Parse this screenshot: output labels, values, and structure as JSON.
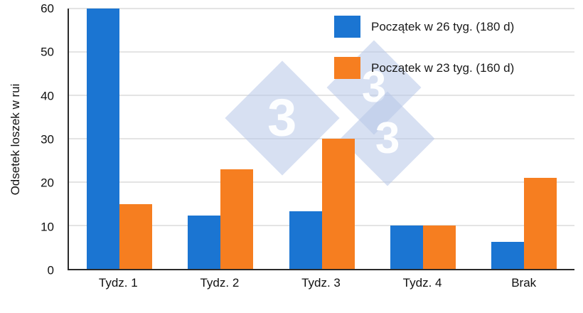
{
  "chart_data": {
    "type": "bar",
    "categories": [
      "Tydz. 1",
      "Tydz. 2",
      "Tydz. 3",
      "Tydz. 4",
      "Brak"
    ],
    "series": [
      {
        "name": "Początek w 26 tyg. (180 d)",
        "color": "#1b75d2",
        "values": [
          60,
          12.3,
          13.2,
          10,
          6.2
        ]
      },
      {
        "name": "Początek w 23 tyg. (160 d)",
        "color": "#f67e20",
        "values": [
          15,
          23,
          30,
          10,
          21
        ]
      }
    ],
    "title": "",
    "xlabel": "",
    "ylabel": "Odsetek loszek w rui",
    "ylim": [
      0,
      60
    ],
    "ytick_step": 10,
    "grid": true,
    "legend_position": "top-right"
  },
  "watermark": {
    "glyph": "3"
  }
}
